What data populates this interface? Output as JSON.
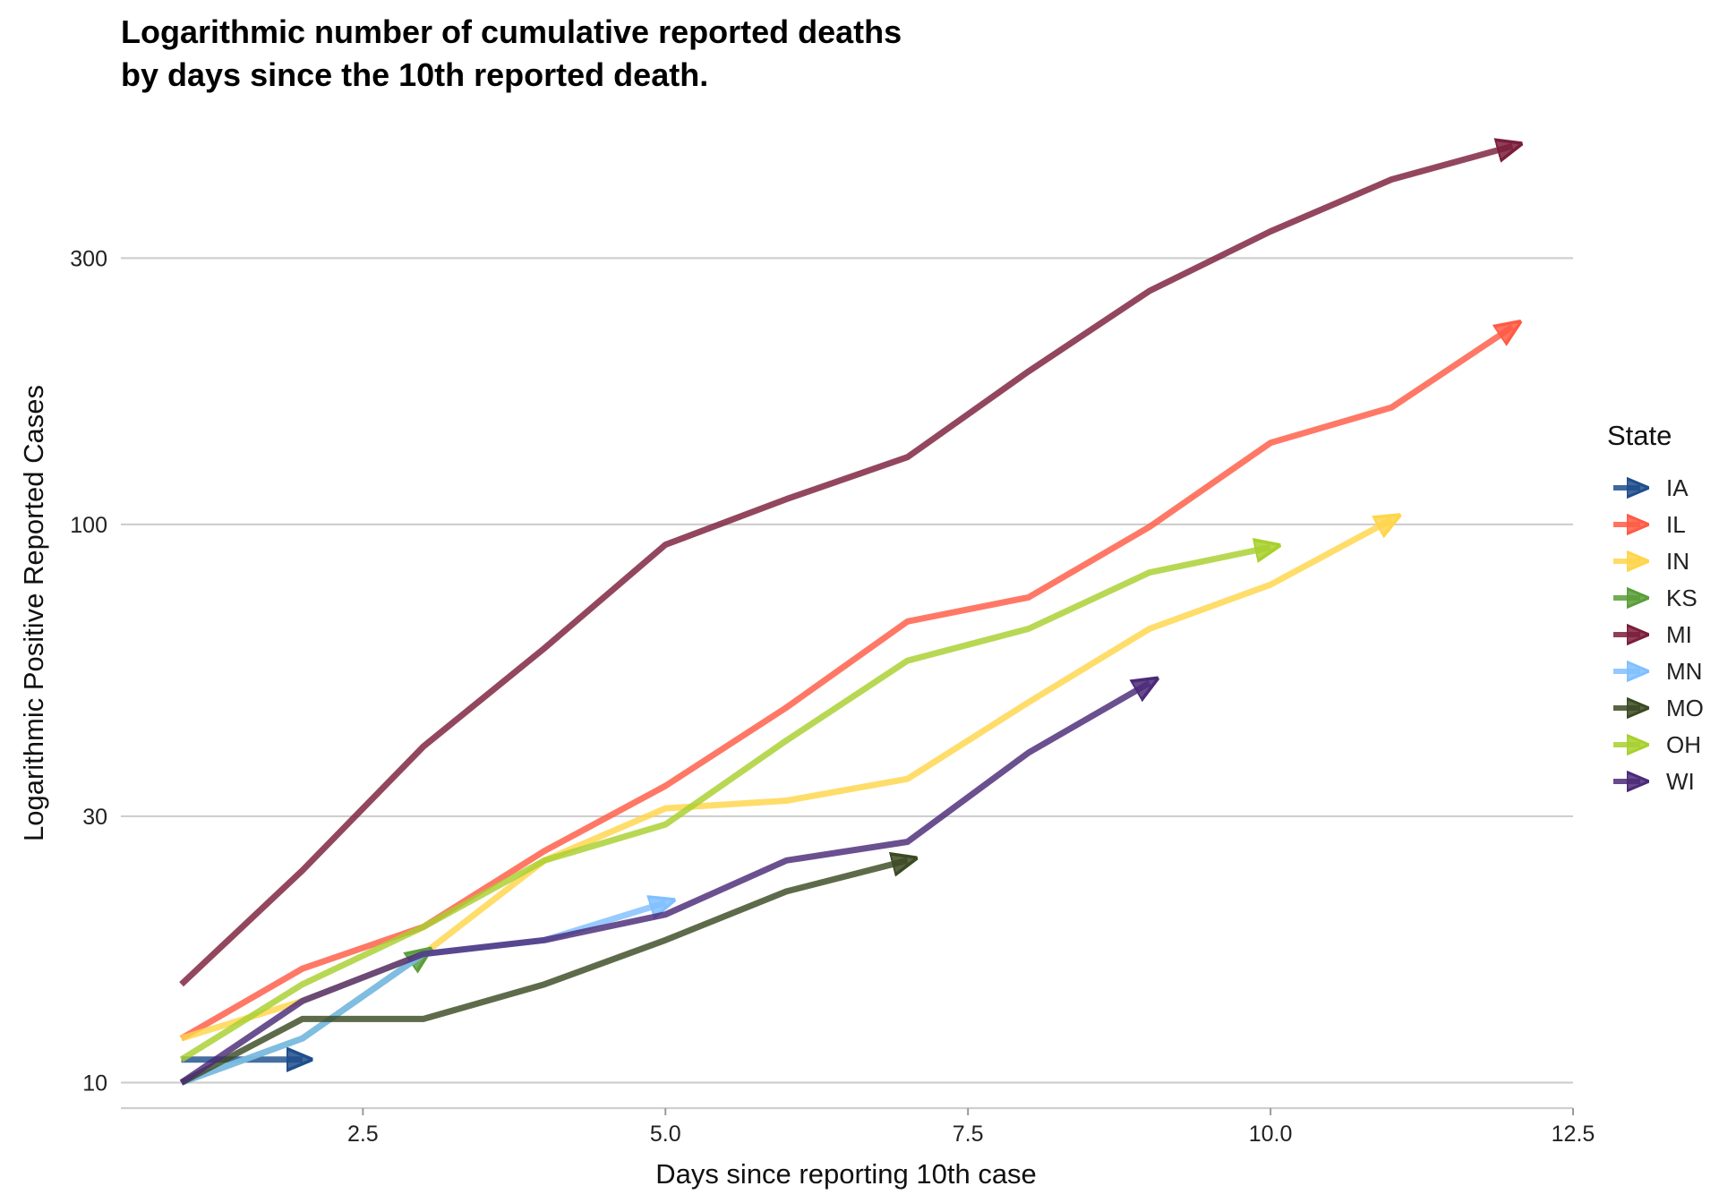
{
  "chart_data": {
    "type": "line",
    "title_lines": [
      "Logarithmic number of cumulative reported deaths",
      "by days since the 10th reported death."
    ],
    "xlabel": "Days since reporting 10th case",
    "ylabel": "Logarithmic Positive Reported Cases",
    "xlim": [
      0.5,
      12.5
    ],
    "ylim": [
      9.0,
      500
    ],
    "y_scale": "log",
    "x_ticks": [
      2.5,
      5.0,
      7.5,
      10.0,
      12.5
    ],
    "x_tick_labels": [
      "2.5",
      "5.0",
      "7.5",
      "10.0",
      "12.5"
    ],
    "y_ticks": [
      10,
      30,
      100,
      300
    ],
    "y_tick_labels": [
      "10",
      "30",
      "100",
      "300"
    ],
    "grid": "horizontal major",
    "legend_title": "State",
    "legend_position": "right",
    "series": [
      {
        "name": "IA",
        "color": "#1f4e8c",
        "x": [
          1,
          2
        ],
        "y": [
          11,
          11
        ]
      },
      {
        "name": "IL",
        "color": "#ff5a44",
        "x": [
          1,
          2,
          3,
          4,
          5,
          6,
          7,
          8,
          9,
          10,
          11,
          12
        ],
        "y": [
          12,
          16,
          19,
          26,
          34,
          47,
          67,
          74,
          99,
          140,
          162,
          226
        ]
      },
      {
        "name": "IN",
        "color": "#ffd54a",
        "x": [
          1,
          2,
          3,
          4,
          5,
          6,
          7,
          8,
          9,
          10,
          11
        ],
        "y": [
          12,
          14,
          17,
          25,
          31,
          32,
          35,
          48,
          65,
          78,
          102
        ]
      },
      {
        "name": "KS",
        "color": "#5a9e3a",
        "x": [
          1,
          2,
          3
        ],
        "y": [
          10,
          12,
          17
        ]
      },
      {
        "name": "MI",
        "color": "#7b1e3b",
        "x": [
          1,
          2,
          3,
          4,
          5,
          6,
          7,
          8,
          9,
          10,
          11,
          12
        ],
        "y": [
          15,
          24,
          40,
          60,
          92,
          111,
          132,
          188,
          262,
          335,
          415,
          476
        ]
      },
      {
        "name": "MN",
        "color": "#80c0ff",
        "x": [
          1,
          2,
          3,
          4,
          5
        ],
        "y": [
          10,
          12,
          17,
          18,
          21
        ]
      },
      {
        "name": "MO",
        "color": "#3b4a23",
        "x": [
          1,
          2,
          3,
          4,
          5,
          6,
          7
        ],
        "y": [
          10,
          13,
          13,
          15,
          18,
          22,
          25
        ]
      },
      {
        "name": "OH",
        "color": "#a8d02e",
        "x": [
          1,
          2,
          3,
          4,
          5,
          6,
          7,
          8,
          9,
          10
        ],
        "y": [
          11,
          15,
          19,
          25,
          29,
          41,
          57,
          65,
          82,
          91
        ]
      },
      {
        "name": "WI",
        "color": "#4b2a78",
        "x": [
          1,
          2,
          3,
          4,
          5,
          6,
          7,
          8,
          9
        ],
        "y": [
          10,
          14,
          17,
          18,
          20,
          25,
          27,
          39,
          52
        ]
      }
    ]
  }
}
